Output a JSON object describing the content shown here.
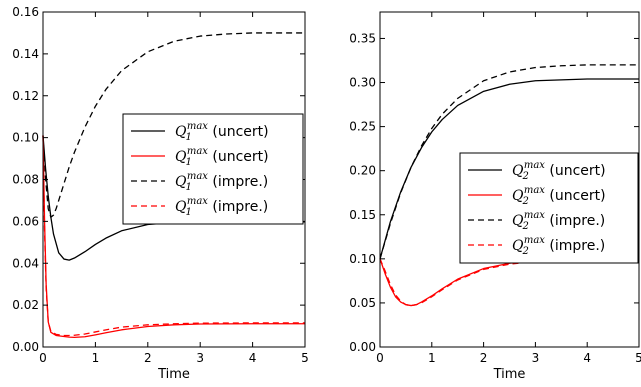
{
  "chart_data": [
    {
      "type": "line",
      "xlabel": "Time",
      "ylabel": "",
      "xlim": [
        0,
        5
      ],
      "ylim": [
        0,
        0.16
      ],
      "xticks": [
        "0",
        "1",
        "2",
        "3",
        "4",
        "5"
      ],
      "yticks": [
        "0.00",
        "0.02",
        "0.04",
        "0.06",
        "0.08",
        "0.10",
        "0.12",
        "0.14",
        "0.16"
      ],
      "grid": false,
      "legend_position": "right",
      "series": [
        {
          "name": "Q_1^max (uncert)",
          "label_base": "Q",
          "label_sub": "1",
          "label_sup": "max",
          "label_tail": " (uncert)",
          "color": "#000000",
          "dash": "solid",
          "x": [
            0,
            0.05,
            0.1,
            0.15,
            0.2,
            0.3,
            0.4,
            0.5,
            0.6,
            0.8,
            1.0,
            1.2,
            1.5,
            2.0,
            2.5,
            3.0,
            3.5,
            4.0,
            5.0
          ],
          "y": [
            0.101,
            0.085,
            0.072,
            0.062,
            0.054,
            0.045,
            0.042,
            0.0415,
            0.0425,
            0.0455,
            0.049,
            0.052,
            0.0555,
            0.0585,
            0.0595,
            0.0598,
            0.0598,
            0.0598,
            0.0598
          ]
        },
        {
          "name": "Q_1^max (uncert)",
          "label_base": "Q",
          "label_sub": "1",
          "label_sup": "max",
          "label_tail": " (uncert)",
          "color": "#ff0000",
          "dash": "solid",
          "x": [
            0,
            0.03,
            0.06,
            0.1,
            0.15,
            0.25,
            0.4,
            0.5,
            0.6,
            0.8,
            1.0,
            1.2,
            1.5,
            2.0,
            2.5,
            3.0,
            4.0,
            5.0
          ],
          "y": [
            0.101,
            0.06,
            0.03,
            0.012,
            0.007,
            0.0055,
            0.005,
            0.0047,
            0.0046,
            0.0049,
            0.0058,
            0.0068,
            0.0082,
            0.0098,
            0.0106,
            0.011,
            0.0111,
            0.0111
          ]
        },
        {
          "name": "Q_1^max (impre.)",
          "label_base": "Q",
          "label_sub": "1",
          "label_sup": "max",
          "label_tail": " (impre.)",
          "color": "#000000",
          "dash": "dashed",
          "x": [
            0,
            0.05,
            0.1,
            0.15,
            0.2,
            0.25,
            0.3,
            0.4,
            0.5,
            0.6,
            0.8,
            1.0,
            1.2,
            1.5,
            2.0,
            2.5,
            3.0,
            3.5,
            4.0,
            5.0
          ],
          "y": [
            0.101,
            0.08,
            0.066,
            0.062,
            0.063,
            0.066,
            0.07,
            0.078,
            0.086,
            0.093,
            0.105,
            0.115,
            0.123,
            0.132,
            0.141,
            0.146,
            0.1485,
            0.1495,
            0.15,
            0.15
          ]
        },
        {
          "name": "Q_1^max (impre.)",
          "label_base": "Q",
          "label_sub": "1",
          "label_sup": "max",
          "label_tail": " (impre.)",
          "color": "#ff0000",
          "dash": "dashed",
          "x": [
            0,
            0.03,
            0.06,
            0.1,
            0.15,
            0.25,
            0.4,
            0.5,
            0.6,
            0.8,
            1.0,
            1.2,
            1.5,
            2.0,
            2.5,
            3.0,
            4.0,
            5.0
          ],
          "y": [
            0.101,
            0.055,
            0.028,
            0.012,
            0.0075,
            0.006,
            0.0055,
            0.0055,
            0.0056,
            0.0062,
            0.0072,
            0.0082,
            0.0095,
            0.0106,
            0.0111,
            0.0114,
            0.0115,
            0.0115
          ]
        }
      ]
    },
    {
      "type": "line",
      "xlabel": "Time",
      "ylabel": "",
      "xlim": [
        0,
        5
      ],
      "ylim": [
        0,
        0.38
      ],
      "xticks": [
        "0",
        "1",
        "2",
        "3",
        "4",
        "5"
      ],
      "yticks": [
        "0.00",
        "0.05",
        "0.10",
        "0.15",
        "0.20",
        "0.25",
        "0.30",
        "0.35"
      ],
      "grid": false,
      "legend_position": "right",
      "series": [
        {
          "name": "Q_2^max (uncert)",
          "label_base": "Q",
          "label_sub": "2",
          "label_sup": "max",
          "label_tail": " (uncert)",
          "color": "#000000",
          "dash": "solid",
          "x": [
            0,
            0.2,
            0.4,
            0.6,
            0.8,
            1.0,
            1.2,
            1.5,
            2.0,
            2.5,
            3.0,
            3.5,
            4.0,
            5.0
          ],
          "y": [
            0.1,
            0.142,
            0.176,
            0.204,
            0.226,
            0.244,
            0.258,
            0.274,
            0.29,
            0.298,
            0.302,
            0.303,
            0.304,
            0.304
          ]
        },
        {
          "name": "Q_2^max (uncert)",
          "label_base": "Q",
          "label_sub": "2",
          "label_sup": "max",
          "label_tail": " (uncert)",
          "color": "#ff0000",
          "dash": "solid",
          "x": [
            0,
            0.1,
            0.2,
            0.3,
            0.4,
            0.5,
            0.6,
            0.7,
            0.8,
            1.0,
            1.2,
            1.5,
            2.0,
            2.5,
            3.0,
            4.0,
            5.0
          ],
          "y": [
            0.1,
            0.083,
            0.068,
            0.057,
            0.051,
            0.048,
            0.047,
            0.048,
            0.051,
            0.058,
            0.066,
            0.077,
            0.089,
            0.095,
            0.098,
            0.099,
            0.099
          ]
        },
        {
          "name": "Q_2^max (impre.)",
          "label_base": "Q",
          "label_sub": "2",
          "label_sup": "max",
          "label_tail": " (impre.)",
          "color": "#000000",
          "dash": "dashed",
          "x": [
            0,
            0.2,
            0.4,
            0.6,
            0.8,
            1.0,
            1.2,
            1.5,
            2.0,
            2.5,
            3.0,
            3.5,
            4.0,
            5.0
          ],
          "y": [
            0.1,
            0.14,
            0.175,
            0.204,
            0.228,
            0.248,
            0.264,
            0.282,
            0.302,
            0.312,
            0.317,
            0.319,
            0.32,
            0.32
          ]
        },
        {
          "name": "Q_2^max (impre.)",
          "label_base": "Q",
          "label_sub": "2",
          "label_sup": "max",
          "label_tail": " (impre.)",
          "color": "#ff0000",
          "dash": "dashed",
          "x": [
            0,
            0.1,
            0.2,
            0.3,
            0.4,
            0.5,
            0.6,
            0.7,
            0.8,
            1.0,
            1.2,
            1.5,
            2.0,
            2.5,
            3.0,
            4.0,
            5.0
          ],
          "y": [
            0.1,
            0.086,
            0.071,
            0.059,
            0.052,
            0.048,
            0.047,
            0.048,
            0.05,
            0.057,
            0.065,
            0.076,
            0.088,
            0.094,
            0.097,
            0.099,
            0.1
          ]
        }
      ]
    }
  ]
}
